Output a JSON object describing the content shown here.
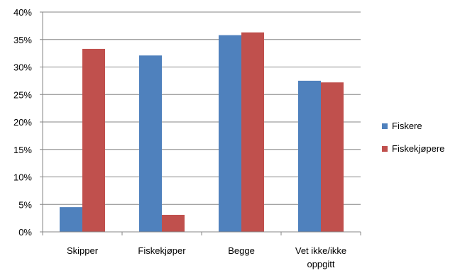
{
  "chart_data": {
    "type": "bar",
    "categories": [
      [
        "Skipper"
      ],
      [
        "Fiskekjøper"
      ],
      [
        "Begge"
      ],
      [
        "Vet ikke/ikke",
        "oppgitt"
      ]
    ],
    "series": [
      {
        "name": "Fiskere",
        "color": "#4F81BD",
        "values": [
          4.5,
          32.1,
          35.8,
          27.5
        ]
      },
      {
        "name": "Fiskekjøpere",
        "color": "#C0504D",
        "values": [
          33.3,
          3.1,
          36.3,
          27.2
        ]
      }
    ],
    "yticks": [
      "0%",
      "5%",
      "10%",
      "15%",
      "20%",
      "25%",
      "30%",
      "35%",
      "40%"
    ],
    "ylim": [
      0,
      40
    ],
    "grid": true,
    "legend_position": "right",
    "title": "",
    "xlabel": "",
    "ylabel": ""
  }
}
